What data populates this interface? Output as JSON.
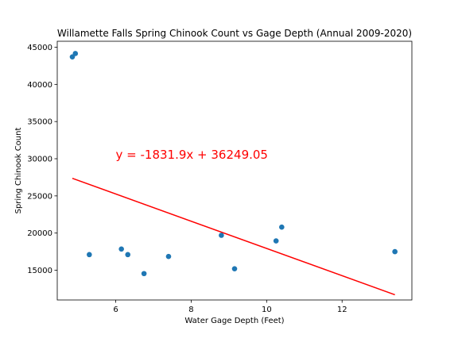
{
  "chart_data": {
    "type": "scatter",
    "title": "Willamette Falls Spring Chinook Count vs Gage Depth (Annual 2009-2020)",
    "xlabel": "Water Gage Depth (Feet)",
    "ylabel": "Spring Chinook Count",
    "xlim": [
      4.45,
      13.85
    ],
    "ylim": [
      11000,
      45800
    ],
    "x_ticks": [
      6,
      8,
      10,
      12
    ],
    "y_ticks": [
      15000,
      20000,
      25000,
      30000,
      35000,
      40000,
      45000
    ],
    "grid": false,
    "points": [
      {
        "x": 4.85,
        "y": 43700
      },
      {
        "x": 4.93,
        "y": 44150
      },
      {
        "x": 5.3,
        "y": 17100
      },
      {
        "x": 6.15,
        "y": 17850
      },
      {
        "x": 6.32,
        "y": 17100
      },
      {
        "x": 6.75,
        "y": 14550
      },
      {
        "x": 7.4,
        "y": 16850
      },
      {
        "x": 8.8,
        "y": 19700
      },
      {
        "x": 9.15,
        "y": 15200
      },
      {
        "x": 10.25,
        "y": 18950
      },
      {
        "x": 10.4,
        "y": 20800
      },
      {
        "x": 13.4,
        "y": 17500
      }
    ],
    "regression": {
      "slope": -1831.9,
      "intercept": 36249.05,
      "x_range": [
        4.85,
        13.4
      ],
      "equation_label": "y = -1831.9x + 36249.05",
      "label_x": 6.0,
      "label_y": 30000
    },
    "colors": {
      "points": "#1f77b4",
      "regression": "#ff0000",
      "equation": "#ff0000",
      "axes": "#000000"
    }
  }
}
